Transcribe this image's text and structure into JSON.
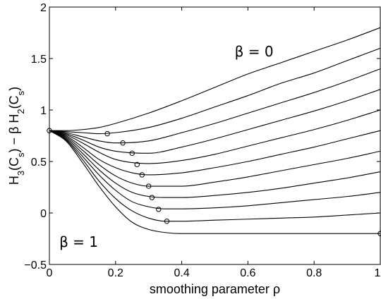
{
  "chart_data": {
    "type": "line",
    "xlabel": "smoothing parameter  ρ",
    "ylabel": {
      "parts": [
        {
          "t": "H"
        },
        {
          "t": "3",
          "sub": true
        },
        {
          "t": "(C"
        },
        {
          "t": "s",
          "sub": true
        },
        {
          "t": ") − β H"
        },
        {
          "t": "2",
          "sub": true
        },
        {
          "t": "(C"
        },
        {
          "t": "s",
          "sub": true
        },
        {
          "t": ")"
        }
      ]
    },
    "xlim": [
      0,
      1
    ],
    "ylim": [
      -0.5,
      2
    ],
    "xticks": [
      {
        "value": 0,
        "label": "0"
      },
      {
        "value": 0.2,
        "label": "0.2"
      },
      {
        "value": 0.4,
        "label": "0.4"
      },
      {
        "value": 0.6,
        "label": "0.6"
      },
      {
        "value": 0.8,
        "label": "0.8"
      },
      {
        "value": 1,
        "label": "1"
      }
    ],
    "yticks": [
      {
        "value": -0.5,
        "label": "−0.5"
      },
      {
        "value": 0,
        "label": "0"
      },
      {
        "value": 0.5,
        "label": "0.5"
      },
      {
        "value": 1,
        "label": "1"
      },
      {
        "value": 1.5,
        "label": "1.5"
      },
      {
        "value": 2,
        "label": "2"
      }
    ],
    "grid": false,
    "annotations": [
      {
        "text": "β = 0",
        "x": 0.56,
        "y": 1.52
      },
      {
        "text": "β = 1",
        "x": 0.03,
        "y": -0.33
      }
    ],
    "series": [
      {
        "beta": 0.0,
        "x": [
          0,
          0.05,
          0.1,
          0.15,
          0.2,
          0.3,
          0.4,
          0.5,
          0.6,
          0.7,
          0.8,
          0.9,
          1.0
        ],
        "y": [
          0.8,
          0.8,
          0.81,
          0.83,
          0.87,
          0.97,
          1.09,
          1.22,
          1.35,
          1.46,
          1.57,
          1.68,
          1.8
        ]
      },
      {
        "beta": 0.1,
        "x": [
          0,
          0.05,
          0.1,
          0.15,
          0.2,
          0.3,
          0.4,
          0.5,
          0.6,
          0.7,
          0.8,
          0.9,
          1.0
        ],
        "y": [
          0.8,
          0.79,
          0.78,
          0.77,
          0.78,
          0.83,
          0.92,
          1.03,
          1.14,
          1.26,
          1.36,
          1.48,
          1.6
        ]
      },
      {
        "beta": 0.2,
        "x": [
          0,
          0.05,
          0.1,
          0.15,
          0.2,
          0.3,
          0.4,
          0.5,
          0.6,
          0.7,
          0.8,
          0.9,
          1.0
        ],
        "y": [
          0.8,
          0.78,
          0.74,
          0.7,
          0.68,
          0.7,
          0.78,
          0.87,
          0.97,
          1.07,
          1.17,
          1.28,
          1.4
        ]
      },
      {
        "beta": 0.3,
        "x": [
          0,
          0.05,
          0.1,
          0.15,
          0.2,
          0.3,
          0.4,
          0.5,
          0.6,
          0.7,
          0.8,
          0.9,
          1.0
        ],
        "y": [
          0.8,
          0.77,
          0.71,
          0.64,
          0.6,
          0.58,
          0.64,
          0.72,
          0.81,
          0.9,
          0.99,
          1.09,
          1.2
        ]
      },
      {
        "beta": 0.4,
        "x": [
          0,
          0.05,
          0.1,
          0.15,
          0.2,
          0.3,
          0.4,
          0.5,
          0.6,
          0.7,
          0.8,
          0.9,
          1.0
        ],
        "y": [
          0.8,
          0.76,
          0.68,
          0.59,
          0.52,
          0.48,
          0.51,
          0.57,
          0.65,
          0.73,
          0.81,
          0.9,
          1.0
        ]
      },
      {
        "beta": 0.5,
        "x": [
          0,
          0.05,
          0.1,
          0.15,
          0.2,
          0.25,
          0.3,
          0.4,
          0.5,
          0.6,
          0.7,
          0.8,
          0.9,
          1.0
        ],
        "y": [
          0.8,
          0.75,
          0.64,
          0.52,
          0.44,
          0.39,
          0.37,
          0.39,
          0.44,
          0.5,
          0.57,
          0.64,
          0.72,
          0.8
        ]
      },
      {
        "beta": 0.6,
        "x": [
          0,
          0.05,
          0.1,
          0.15,
          0.2,
          0.25,
          0.3,
          0.4,
          0.5,
          0.6,
          0.7,
          0.8,
          0.9,
          1.0
        ],
        "y": [
          0.8,
          0.74,
          0.61,
          0.47,
          0.36,
          0.29,
          0.26,
          0.26,
          0.3,
          0.35,
          0.41,
          0.47,
          0.53,
          0.6
        ]
      },
      {
        "beta": 0.7,
        "x": [
          0,
          0.05,
          0.1,
          0.15,
          0.2,
          0.25,
          0.3,
          0.35,
          0.4,
          0.5,
          0.6,
          0.7,
          0.8,
          0.9,
          1.0
        ],
        "y": [
          0.8,
          0.73,
          0.58,
          0.42,
          0.29,
          0.2,
          0.16,
          0.15,
          0.15,
          0.17,
          0.2,
          0.24,
          0.29,
          0.34,
          0.4
        ]
      },
      {
        "beta": 0.8,
        "x": [
          0,
          0.05,
          0.1,
          0.15,
          0.2,
          0.25,
          0.3,
          0.35,
          0.4,
          0.5,
          0.6,
          0.7,
          0.8,
          0.9,
          1.0
        ],
        "y": [
          0.8,
          0.72,
          0.55,
          0.37,
          0.22,
          0.11,
          0.06,
          0.04,
          0.04,
          0.05,
          0.07,
          0.1,
          0.13,
          0.16,
          0.2
        ]
      },
      {
        "beta": 0.9,
        "x": [
          0,
          0.05,
          0.1,
          0.15,
          0.2,
          0.25,
          0.3,
          0.35,
          0.4,
          0.5,
          0.6,
          0.7,
          0.8,
          0.9,
          1.0
        ],
        "y": [
          0.8,
          0.71,
          0.52,
          0.31,
          0.14,
          0.02,
          -0.05,
          -0.08,
          -0.08,
          -0.07,
          -0.06,
          -0.05,
          -0.04,
          -0.02,
          0.0
        ]
      },
      {
        "beta": 1.0,
        "x": [
          0,
          0.05,
          0.1,
          0.15,
          0.2,
          0.25,
          0.3,
          0.35,
          0.4,
          0.5,
          0.6,
          0.7,
          0.8,
          0.9,
          1.0
        ],
        "y": [
          0.8,
          0.7,
          0.49,
          0.26,
          0.06,
          -0.09,
          -0.16,
          -0.19,
          -0.2,
          -0.2,
          -0.2,
          -0.2,
          -0.2,
          -0.2,
          -0.2
        ]
      }
    ],
    "minima": [
      {
        "x": 0.0,
        "y": 0.8
      },
      {
        "x": 0.175,
        "y": 0.77
      },
      {
        "x": 0.222,
        "y": 0.68
      },
      {
        "x": 0.25,
        "y": 0.58
      },
      {
        "x": 0.265,
        "y": 0.47
      },
      {
        "x": 0.28,
        "y": 0.37
      },
      {
        "x": 0.3,
        "y": 0.26
      },
      {
        "x": 0.31,
        "y": 0.15
      },
      {
        "x": 0.33,
        "y": 0.035
      },
      {
        "x": 0.355,
        "y": -0.08
      },
      {
        "x": 1.0,
        "y": -0.2
      }
    ]
  }
}
